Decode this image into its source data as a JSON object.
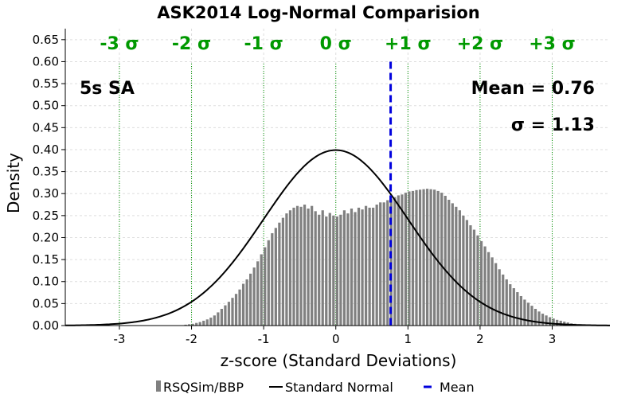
{
  "chart_data": {
    "type": "bar",
    "title": "ASK2014 Log-Normal Comparision",
    "xlabel": "z-score (Standard Deviations)",
    "ylabel": "Density",
    "xlim": [
      -3.75,
      3.8
    ],
    "ylim": [
      0,
      0.675
    ],
    "x_ticks": [
      "-3",
      "-2",
      "-1",
      "0",
      "1",
      "2",
      "3"
    ],
    "y_ticks": [
      "0.00",
      "0.05",
      "0.10",
      "0.15",
      "0.20",
      "0.25",
      "0.30",
      "0.35",
      "0.40",
      "0.45",
      "0.50",
      "0.55",
      "0.60",
      "0.65"
    ],
    "grid": true,
    "sigma_lines": {
      "labels": [
        "-3 σ",
        "-2 σ",
        "-1 σ",
        "0 σ",
        "+1 σ",
        "+2 σ",
        "+3 σ"
      ],
      "positions": [
        -3,
        -2,
        -1,
        0,
        1,
        2,
        3
      ],
      "color": "#009900"
    },
    "annotations": {
      "period": "5s SA",
      "mean_text": "Mean = 0.76",
      "sigma_text": "σ = 1.13"
    },
    "mean_line": {
      "x": 0.76,
      "color": "#0000dd"
    },
    "histogram": {
      "name": "RSQSim/BBP",
      "color": "#808080",
      "bin_width": 0.05,
      "x": [
        -2.1,
        -2.05,
        -2.0,
        -1.95,
        -1.9,
        -1.85,
        -1.8,
        -1.75,
        -1.7,
        -1.65,
        -1.6,
        -1.55,
        -1.5,
        -1.45,
        -1.4,
        -1.35,
        -1.3,
        -1.25,
        -1.2,
        -1.15,
        -1.1,
        -1.05,
        -1.0,
        -0.95,
        -0.9,
        -0.85,
        -0.8,
        -0.75,
        -0.7,
        -0.65,
        -0.6,
        -0.55,
        -0.5,
        -0.45,
        -0.4,
        -0.35,
        -0.3,
        -0.25,
        -0.2,
        -0.15,
        -0.1,
        -0.05,
        0.0,
        0.05,
        0.1,
        0.15,
        0.2,
        0.25,
        0.3,
        0.35,
        0.4,
        0.45,
        0.5,
        0.55,
        0.6,
        0.65,
        0.7,
        0.75,
        0.8,
        0.85,
        0.9,
        0.95,
        1.0,
        1.05,
        1.1,
        1.15,
        1.2,
        1.25,
        1.3,
        1.35,
        1.4,
        1.45,
        1.5,
        1.55,
        1.6,
        1.65,
        1.7,
        1.75,
        1.8,
        1.85,
        1.9,
        1.95,
        2.0,
        2.05,
        2.1,
        2.15,
        2.2,
        2.25,
        2.3,
        2.35,
        2.4,
        2.45,
        2.5,
        2.55,
        2.6,
        2.65,
        2.7,
        2.75,
        2.8,
        2.85,
        2.9,
        2.95,
        3.0,
        3.05,
        3.1,
        3.15,
        3.2,
        3.25,
        3.3,
        3.35,
        3.4,
        3.45,
        3.5,
        3.55,
        3.6
      ],
      "values": [
        0.002,
        0.003,
        0.004,
        0.006,
        0.008,
        0.011,
        0.014,
        0.018,
        0.023,
        0.03,
        0.038,
        0.046,
        0.054,
        0.063,
        0.072,
        0.082,
        0.095,
        0.105,
        0.118,
        0.132,
        0.146,
        0.162,
        0.178,
        0.194,
        0.21,
        0.222,
        0.234,
        0.245,
        0.255,
        0.262,
        0.268,
        0.272,
        0.27,
        0.275,
        0.266,
        0.272,
        0.26,
        0.252,
        0.262,
        0.248,
        0.256,
        0.25,
        0.248,
        0.252,
        0.262,
        0.255,
        0.266,
        0.258,
        0.268,
        0.264,
        0.272,
        0.268,
        0.268,
        0.275,
        0.28,
        0.28,
        0.285,
        0.288,
        0.292,
        0.296,
        0.298,
        0.302,
        0.305,
        0.306,
        0.308,
        0.309,
        0.31,
        0.311,
        0.31,
        0.309,
        0.306,
        0.302,
        0.295,
        0.286,
        0.278,
        0.27,
        0.262,
        0.25,
        0.24,
        0.228,
        0.218,
        0.205,
        0.192,
        0.18,
        0.167,
        0.155,
        0.142,
        0.128,
        0.116,
        0.105,
        0.094,
        0.085,
        0.076,
        0.067,
        0.059,
        0.052,
        0.045,
        0.038,
        0.032,
        0.027,
        0.023,
        0.019,
        0.016,
        0.013,
        0.011,
        0.009,
        0.007,
        0.005,
        0.004,
        0.003,
        0.002,
        0.002,
        0.001,
        0.001,
        0.001
      ]
    },
    "curve": {
      "name": "Standard Normal",
      "color": "#000000",
      "mu": 0,
      "sigma": 1
    },
    "legend": {
      "placement": "bottom",
      "items": [
        "RSQSim/BBP",
        "Standard Normal",
        "Mean"
      ]
    }
  }
}
